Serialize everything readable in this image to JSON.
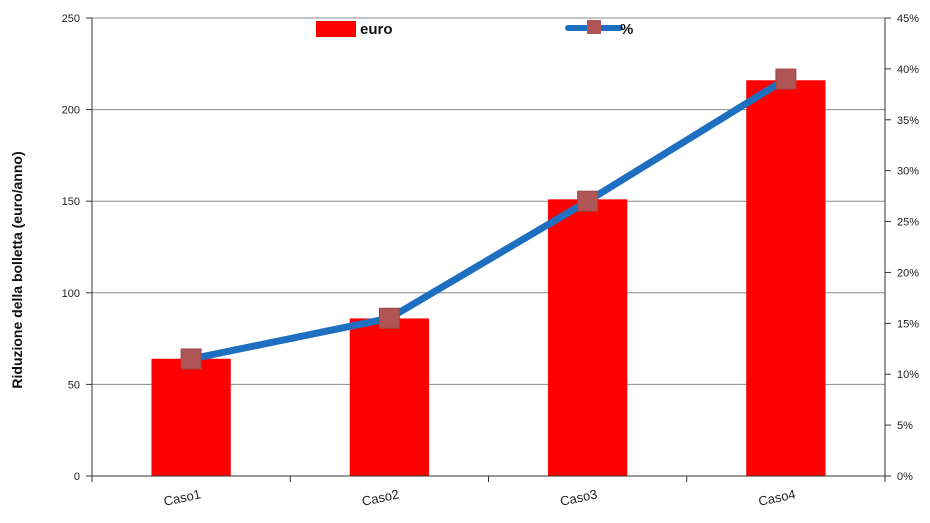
{
  "colors": {
    "bar": "#ff0000",
    "line": "#1f6fc0",
    "marker": "#b05555",
    "grid": "#888888",
    "axis": "#333333"
  },
  "chart_data": {
    "type": "bar",
    "categories": [
      "Caso1",
      "Caso2",
      "Caso3",
      "Caso4"
    ],
    "series": [
      {
        "name": "euro",
        "type": "bar",
        "axis": "left",
        "values": [
          64,
          86,
          151,
          216
        ]
      },
      {
        "name": "%",
        "type": "line",
        "axis": "right",
        "values": [
          0.115,
          0.155,
          0.27,
          0.39
        ]
      }
    ],
    "ylabel": "Riduzione della bolletta (euro/anno)",
    "ylim": [
      0,
      250
    ],
    "y_ticks": [
      "0",
      "50",
      "100",
      "150",
      "200",
      "250"
    ],
    "y2lim": [
      0,
      0.45
    ],
    "y2_ticks": [
      "0%",
      "5%",
      "10%",
      "15%",
      "20%",
      "25%",
      "30%",
      "35%",
      "40%",
      "45%"
    ],
    "grid": true,
    "legend_position": "top"
  }
}
